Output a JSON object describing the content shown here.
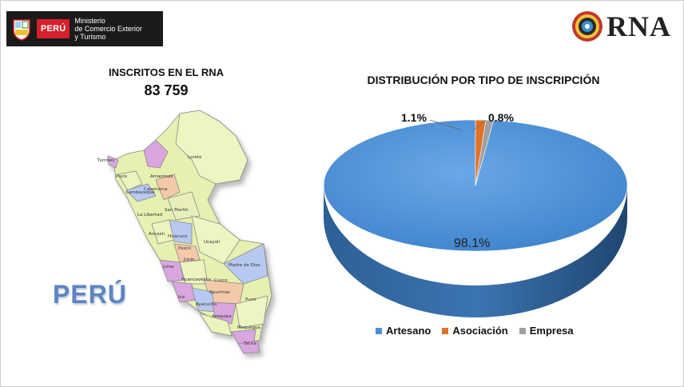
{
  "header": {
    "brand_peru": "PERÚ",
    "ministry_line1": "Ministerio",
    "ministry_line2": "de Comercio Exterior",
    "ministry_line3": "y Turismo",
    "rna_label": "RNA"
  },
  "left_panel": {
    "title": "INSCRITOS EN EL RNA",
    "count": "83 759",
    "country_label": "PERÚ",
    "regions": [
      "Tumbes",
      "Piura",
      "Amazonas",
      "Lambayeque",
      "Cajamarca",
      "Loreto",
      "San Martin",
      "La Libertad",
      "Ancash",
      "Huánuco",
      "Ucayali",
      "Pasco",
      "Junin",
      "Lima",
      "Madre de Dios",
      "Huancavelica",
      "Cusco",
      "Ica",
      "Ayacucho",
      "Apurimac",
      "Puno",
      "Arequipa",
      "Moquegua",
      "Tacna"
    ]
  },
  "chart_data": {
    "type": "pie",
    "title": "DISTRIBUCIÓN POR TIPO DE INSCRIPCIÓN",
    "categories": [
      "Artesano",
      "Asociación",
      "Empresa"
    ],
    "values": [
      98.1,
      1.1,
      0.8
    ],
    "labels": [
      "98.1%",
      "1.1%",
      "0.8%"
    ],
    "colors": [
      "#4a8fd6",
      "#e0722a",
      "#a0a0a0"
    ],
    "legend_position": "bottom"
  }
}
